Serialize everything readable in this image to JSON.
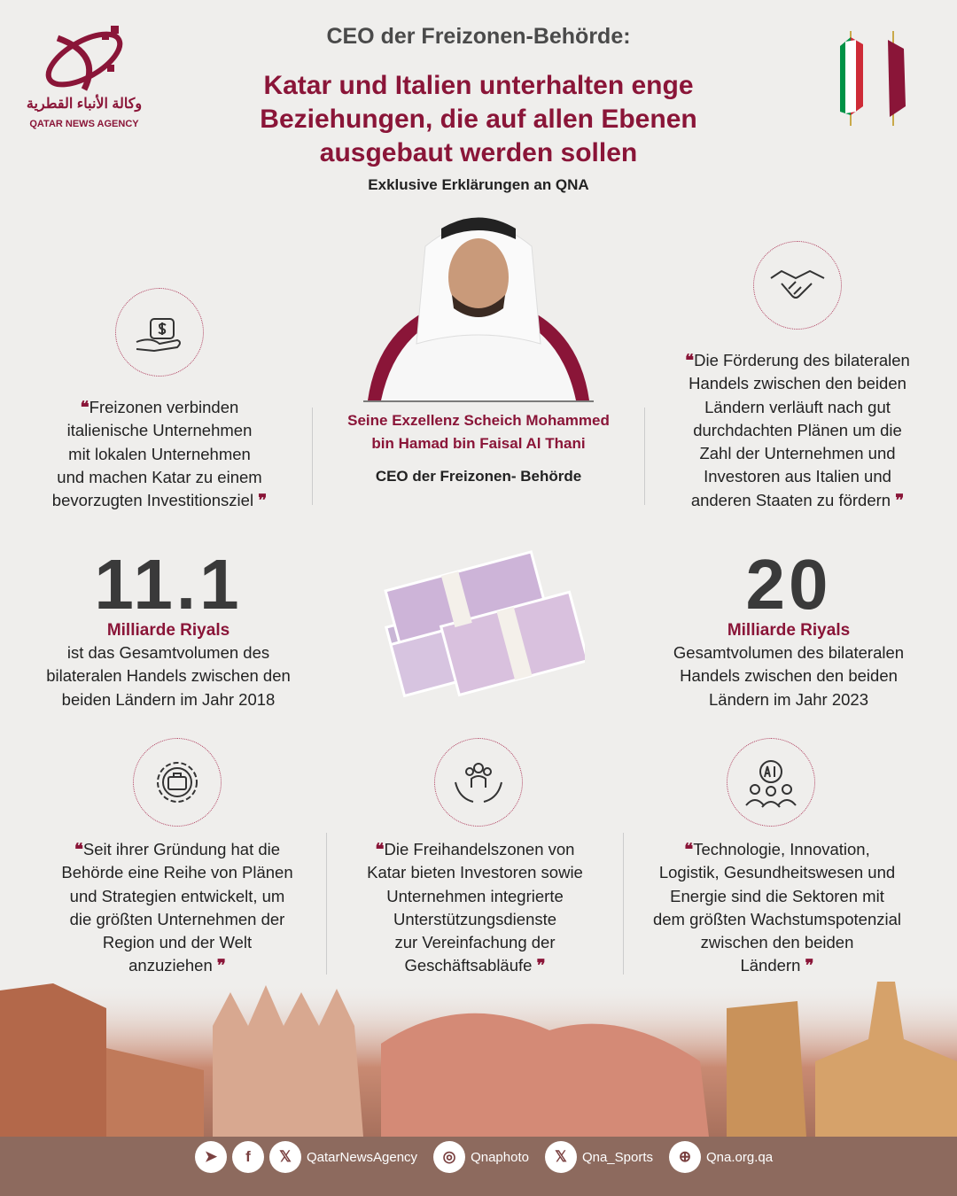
{
  "logo": {
    "arabic": "وكالة الأنباء القطرية",
    "english": "QATAR NEWS AGENCY"
  },
  "header": {
    "kicker": "CEO der Freizonen-Behörde:",
    "title_lines": [
      "Katar und Italien unterhalten enge",
      "Beziehungen, die auf allen Ebenen",
      "ausgebaut werden sollen"
    ],
    "subtitle": "Exklusive Erklärungen an QNA"
  },
  "person": {
    "name_lines": [
      "Seine Exzellenz Scheich Mohammed",
      "bin Hamad bin Faisal Al Thani"
    ],
    "role": "CEO der Freizonen- Behörde"
  },
  "quotes_top": [
    {
      "icon": "money-hand-icon",
      "lines": [
        "Freizonen verbinden",
        "italienische Unternehmen",
        "mit lokalen Unternehmen",
        "und machen Katar zu einem",
        "bevorzugten Investitionsziel"
      ]
    },
    {
      "icon": "handshake-icon",
      "lines": [
        "Die Förderung des bilateralen",
        "Handels zwischen den beiden",
        "Ländern verläuft nach gut",
        "durchdachten Plänen um die",
        "Zahl der Unternehmen und",
        "Investoren aus Italien und",
        "anderen Staaten zu fördern"
      ]
    }
  ],
  "stats": [
    {
      "value": "11.1",
      "unit": "Milliarde Riyals",
      "lines": [
        "ist das Gesamtvolumen des",
        "bilateralen Handels zwischen den",
        "beiden Ländern im Jahr 2018"
      ]
    },
    {
      "value": "20",
      "unit": "Milliarde Riyals",
      "lines": [
        "Gesamtvolumen des bilateralen",
        "Handels zwischen den beiden",
        "Ländern im Jahr 2023"
      ]
    }
  ],
  "quotes_bottom": [
    {
      "icon": "gear-briefcase-icon",
      "lines": [
        "Seit ihrer Gründung hat die",
        "Behörde eine Reihe von Plänen",
        "und Strategien entwickelt, um",
        "die größten Unternehmen der",
        "Region und der Welt",
        "anzuziehen"
      ]
    },
    {
      "icon": "people-hands-icon",
      "lines": [
        "Die Freihandelszonen von",
        "Katar bieten Investoren sowie",
        "Unternehmen integrierte",
        "Unterstützungsdienste",
        "zur Vereinfachung der",
        "Geschäftsabläufe"
      ]
    },
    {
      "icon": "ai-people-icon",
      "lines": [
        "Technologie, Innovation,",
        "Logistik, Gesundheitswesen und",
        "Energie sind die Sektoren mit",
        "dem größten Wachstumspotenzial",
        "zwischen den beiden",
        "Ländern"
      ]
    }
  ],
  "footer": [
    {
      "icon": "telegram-icon",
      "label": ""
    },
    {
      "icon": "facebook-icon",
      "label": ""
    },
    {
      "icon": "x-icon",
      "label": "QatarNewsAgency"
    },
    {
      "icon": "instagram-icon",
      "label": "Qnaphoto"
    },
    {
      "icon": "x-icon",
      "label": "Qna_Sports"
    },
    {
      "icon": "globe-icon",
      "label": "Qna.org.qa"
    }
  ],
  "colors": {
    "accent": "#8a1538",
    "background": "#efeeec",
    "text": "#222222"
  }
}
